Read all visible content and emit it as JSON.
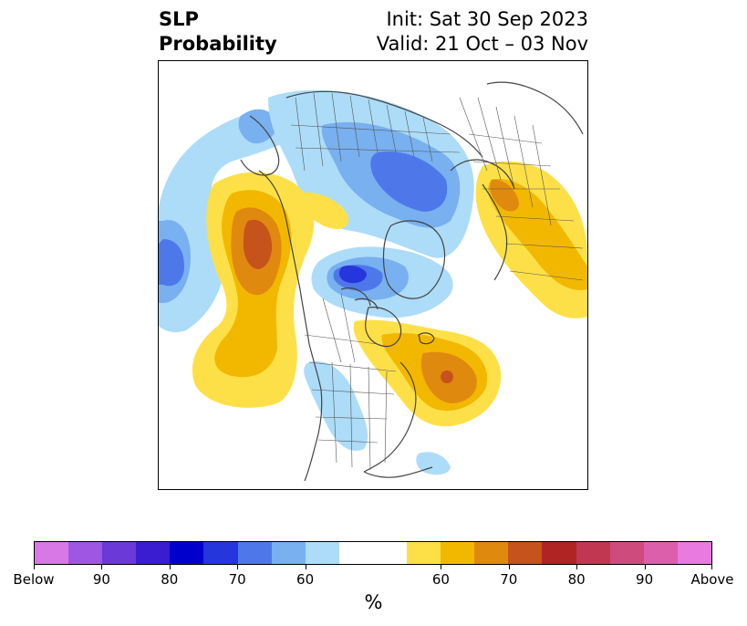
{
  "title": {
    "left_line1": "SLP",
    "left_line2": "Probability",
    "right_line1": "Init: Sat 30 Sep 2023",
    "right_line2": "Valid: 21 Oct – 03 Nov"
  },
  "map": {
    "projection": "north-polar-stereographic",
    "features": [
      "coastlines",
      "country-borders",
      "state-borders"
    ],
    "anomaly_regions": [
      {
        "name": "north-pacific-positive",
        "category": "above",
        "max_level": "75"
      },
      {
        "name": "aleutian-negative",
        "category": "below",
        "max_level": "70"
      },
      {
        "name": "arctic-ocean-negative",
        "category": "below",
        "max_level": "80"
      },
      {
        "name": "eurasia-north-negative",
        "category": "below",
        "max_level": "70"
      },
      {
        "name": "eastern-canada-positive",
        "category": "above",
        "max_level": "75"
      },
      {
        "name": "siberia-positive",
        "category": "above",
        "max_level": "70"
      },
      {
        "name": "central-us-negative",
        "category": "below",
        "max_level": "60"
      }
    ]
  },
  "colorbar": {
    "below_colors": [
      "#d877e6",
      "#9e57e2",
      "#6a39d8",
      "#3a1dd1",
      "#0000cc",
      "#2536dd",
      "#4e78ea",
      "#78b0f0",
      "#acdcf8"
    ],
    "neutral_color": "#ffffff",
    "above_colors": [
      "#fde047",
      "#f2b800",
      "#e0890f",
      "#c6531b",
      "#b02424",
      "#c13651",
      "#cd4c7d",
      "#dc5fac",
      "#e87ae0"
    ],
    "tick_labels": [
      "Below",
      "90",
      "80",
      "70",
      "60",
      "60",
      "70",
      "80",
      "90",
      "Above"
    ],
    "unit_label": "%"
  }
}
